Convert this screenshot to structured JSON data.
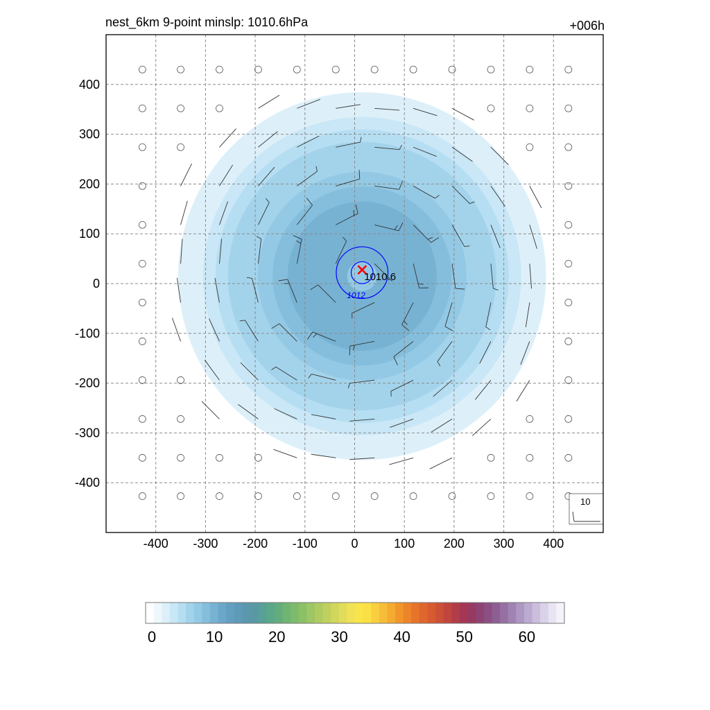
{
  "header": {
    "title": "nest_6km  9-point minslp: 1010.6hPa",
    "forecast_hour": "+006h"
  },
  "chart_data": [
    {
      "type": "heatmap",
      "title": "nest_6km  9-point minslp: 1010.6hPa",
      "subtitle": "+006h",
      "xlabel": "",
      "ylabel": "",
      "xlim": [
        -500,
        500
      ],
      "ylim": [
        -500,
        500
      ],
      "x_ticks": [
        -400,
        -300,
        -200,
        -100,
        0,
        100,
        200,
        300,
        400
      ],
      "y_ticks": [
        -400,
        -300,
        -200,
        -100,
        0,
        100,
        200,
        300,
        400
      ],
      "grid": true,
      "field": {
        "center": [
          15,
          15
        ],
        "peak_value": 15,
        "outer_radius": 370,
        "levels": [
          {
            "radius": 370,
            "value": 1
          },
          {
            "radius": 345,
            "value": 2
          },
          {
            "radius": 320,
            "value": 3
          },
          {
            "radius": 295,
            "value": 4
          },
          {
            "radius": 270,
            "value": 5
          },
          {
            "radius": 240,
            "value": 6
          },
          {
            "radius": 210,
            "value": 7
          },
          {
            "radius": 180,
            "value": 8
          },
          {
            "radius": 150,
            "value": 9
          },
          {
            "radius": 115,
            "value": 10
          },
          {
            "radius": 60,
            "value": 9
          },
          {
            "radius": 30,
            "value": 7
          }
        ]
      },
      "pressure_contours": [
        {
          "label": "1012",
          "radius": 52,
          "color": "#0000ff"
        },
        {
          "label": "",
          "radius": 22,
          "color": "#0000ff"
        }
      ],
      "center_marker": {
        "x": 15,
        "y": 15,
        "label": "1010.6",
        "color": "#ff0000"
      },
      "wind_barbs": {
        "x_positions": [
          -427,
          -350,
          -272,
          -194,
          -116,
          -38,
          40,
          118,
          196,
          274,
          352,
          430
        ],
        "y_positions": [
          430,
          352,
          274,
          196,
          118,
          40,
          -38,
          -116,
          -194,
          -272,
          -350,
          -427
        ],
        "calm_threshold": 1.5,
        "max_speed": 10,
        "radius_of_max_wind": 130
      },
      "reference_vector": {
        "label": "10",
        "value": 10
      }
    },
    {
      "type": "bar",
      "title": "",
      "colorbar": true,
      "tick_labels": [
        "0",
        "10",
        "20",
        "30",
        "40",
        "50",
        "60"
      ],
      "ticks": [
        0,
        10,
        20,
        30,
        40,
        50,
        60
      ],
      "range": [
        -1,
        66
      ],
      "colors": [
        "#ffffff",
        "#eef7fc",
        "#ddf0fa",
        "#c9e7f6",
        "#b6def2",
        "#a3d3eb",
        "#93c9e4",
        "#84bedc",
        "#77b2d3",
        "#6ba7c9",
        "#639fc0",
        "#5f9ab8",
        "#5c97ae",
        "#5a99a4",
        "#58a098",
        "#5aa78a",
        "#63ad7c",
        "#6fb472",
        "#7dba6b",
        "#8cc067",
        "#9dc664",
        "#afcb61",
        "#c0d05e",
        "#d1d65c",
        "#e1dc5a",
        "#f0e156",
        "#f9e44a",
        "#fbe043",
        "#f9cf3f",
        "#f7bd38",
        "#f5aa30",
        "#f1962a",
        "#ec8429",
        "#e6742a",
        "#df662c",
        "#d75a30",
        "#cc4f36",
        "#bf453e",
        "#b13d48",
        "#a33754",
        "#963a62",
        "#8f4373",
        "#8c4f83",
        "#8e5e93",
        "#9670a3",
        "#a183b3",
        "#ae97c2",
        "#bcaad0",
        "#cbbedd",
        "#dad2e9",
        "#e8e4f2",
        "#f5f2fa"
      ]
    }
  ]
}
